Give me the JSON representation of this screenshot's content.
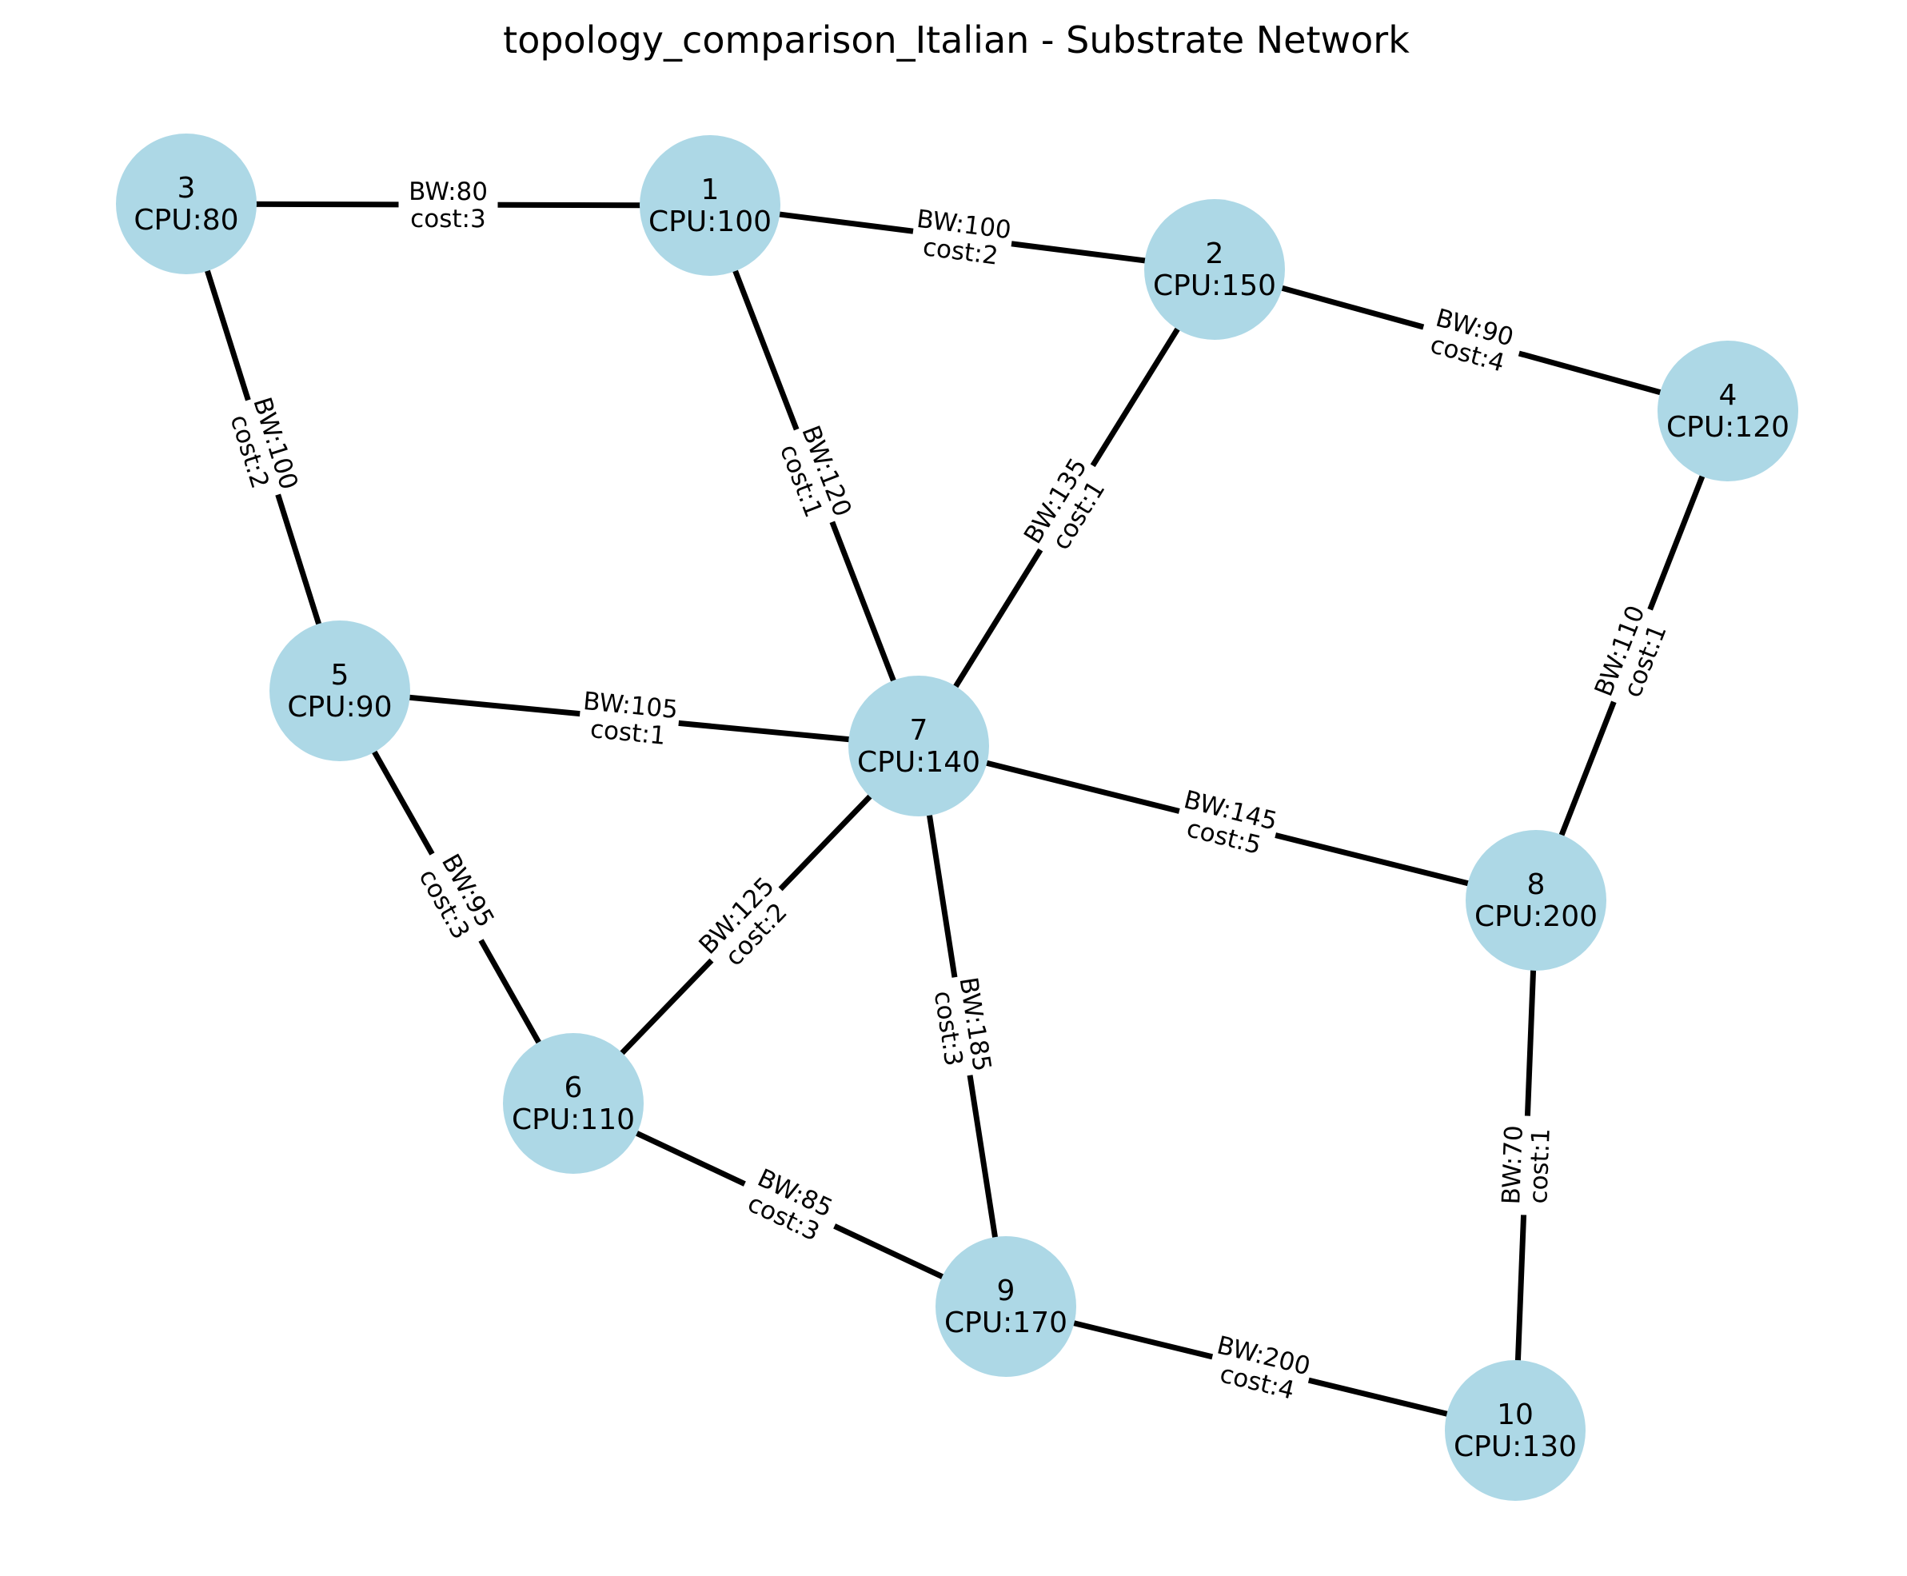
{
  "title": "topology_comparison_Italian - Substrate Network",
  "colors": {
    "node_fill": "#add8e6",
    "edge": "#000000",
    "text": "#000000",
    "background": "#ffffff"
  },
  "nodes": [
    {
      "id": "1",
      "label": "1",
      "cpu": "CPU:100"
    },
    {
      "id": "2",
      "label": "2",
      "cpu": "CPU:150"
    },
    {
      "id": "3",
      "label": "3",
      "cpu": "CPU:80"
    },
    {
      "id": "4",
      "label": "4",
      "cpu": "CPU:120"
    },
    {
      "id": "5",
      "label": "5",
      "cpu": "CPU:90"
    },
    {
      "id": "6",
      "label": "6",
      "cpu": "CPU:110"
    },
    {
      "id": "7",
      "label": "7",
      "cpu": "CPU:140"
    },
    {
      "id": "8",
      "label": "8",
      "cpu": "CPU:200"
    },
    {
      "id": "9",
      "label": "9",
      "cpu": "CPU:170"
    },
    {
      "id": "10",
      "label": "10",
      "cpu": "CPU:130"
    }
  ],
  "edges": [
    {
      "source": "3",
      "target": "1",
      "bw": "BW:80",
      "cost": "cost:3"
    },
    {
      "source": "1",
      "target": "2",
      "bw": "BW:100",
      "cost": "cost:2"
    },
    {
      "source": "2",
      "target": "4",
      "bw": "BW:90",
      "cost": "cost:4"
    },
    {
      "source": "3",
      "target": "5",
      "bw": "BW:100",
      "cost": "cost:2"
    },
    {
      "source": "1",
      "target": "7",
      "bw": "BW:120",
      "cost": "cost:1"
    },
    {
      "source": "2",
      "target": "7",
      "bw": "BW:135",
      "cost": "cost:1"
    },
    {
      "source": "4",
      "target": "8",
      "bw": "BW:110",
      "cost": "cost:1"
    },
    {
      "source": "5",
      "target": "7",
      "bw": "BW:105",
      "cost": "cost:1"
    },
    {
      "source": "7",
      "target": "8",
      "bw": "BW:145",
      "cost": "cost:5"
    },
    {
      "source": "5",
      "target": "6",
      "bw": "BW:95",
      "cost": "cost:3"
    },
    {
      "source": "7",
      "target": "6",
      "bw": "BW:125",
      "cost": "cost:2"
    },
    {
      "source": "7",
      "target": "9",
      "bw": "BW:185",
      "cost": "cost:3"
    },
    {
      "source": "8",
      "target": "10",
      "bw": "BW:70",
      "cost": "cost:1"
    },
    {
      "source": "6",
      "target": "9",
      "bw": "BW:85",
      "cost": "cost:3"
    },
    {
      "source": "9",
      "target": "10",
      "bw": "BW:200",
      "cost": "cost:4"
    }
  ]
}
